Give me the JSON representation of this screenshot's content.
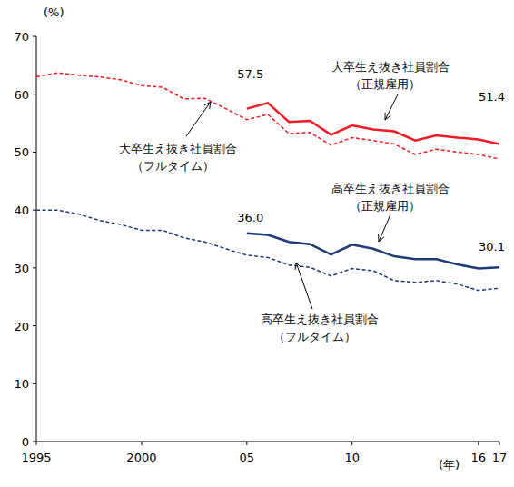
{
  "chart_data": {
    "type": "line",
    "x": [
      1995,
      1996,
      1997,
      1998,
      1999,
      2000,
      2001,
      2002,
      2003,
      2004,
      2005,
      2006,
      2007,
      2008,
      2009,
      2010,
      2011,
      2012,
      2013,
      2014,
      2015,
      2016,
      2017
    ],
    "xlim": [
      1995,
      2017
    ],
    "xticks": [
      1995,
      2000,
      {
        "value": 2005,
        "label": "05"
      },
      {
        "value": 2010,
        "label": "10"
      },
      {
        "value": 2016,
        "label": "16"
      },
      {
        "value": 2017,
        "label": "17"
      }
    ],
    "x_label": "(年)",
    "ylim": [
      0,
      70
    ],
    "yticks": [
      0,
      10,
      20,
      30,
      40,
      50,
      60,
      70
    ],
    "y_label": "(%)",
    "grid": false,
    "series": [
      {
        "name": "大卒生え抜き社員割合（正規雇用）",
        "color": "#ee1c25",
        "line_style": "solid",
        "values": [
          null,
          null,
          null,
          null,
          null,
          null,
          null,
          null,
          null,
          null,
          57.5,
          58.5,
          55.2,
          55.4,
          53.0,
          54.6,
          53.9,
          53.6,
          52.0,
          52.9,
          52.5,
          52.2,
          51.4
        ],
        "value_labels": [
          null,
          null,
          null,
          null,
          null,
          null,
          null,
          null,
          null,
          null,
          "57.5",
          null,
          null,
          null,
          null,
          null,
          null,
          null,
          null,
          null,
          null,
          null,
          "51.4"
        ]
      },
      {
        "name": "大卒生え抜き社員割合（フルタイム）",
        "color": "#ee1c25",
        "line_style": "dashed",
        "values": [
          63.0,
          63.7,
          63.3,
          63.0,
          62.5,
          61.5,
          61.2,
          59.2,
          59.3,
          57.5,
          55.6,
          56.5,
          53.2,
          53.4,
          51.2,
          52.5,
          52.0,
          51.4,
          49.6,
          50.5,
          50.0,
          49.6,
          48.8
        ]
      },
      {
        "name": "高卒生え抜き社員割合（正規雇用）",
        "color": "#1f3a78",
        "line_style": "solid",
        "values": [
          null,
          null,
          null,
          null,
          null,
          null,
          null,
          null,
          null,
          null,
          36.0,
          35.7,
          34.5,
          34.1,
          32.3,
          34.0,
          33.3,
          32.0,
          31.5,
          31.5,
          30.6,
          29.9,
          30.1
        ],
        "value_labels": [
          null,
          null,
          null,
          null,
          null,
          null,
          null,
          null,
          null,
          null,
          "36.0",
          null,
          null,
          null,
          null,
          null,
          null,
          null,
          null,
          null,
          null,
          null,
          "30.1"
        ]
      },
      {
        "name": "高卒生え抜き社員割合（フルタイム）",
        "color": "#1f3a78",
        "line_style": "dashed",
        "values": [
          40.0,
          40.0,
          39.3,
          38.2,
          37.5,
          36.5,
          36.5,
          35.2,
          34.5,
          33.3,
          32.2,
          31.8,
          30.5,
          30.1,
          28.6,
          29.9,
          29.5,
          27.8,
          27.5,
          27.8,
          27.2,
          26.1,
          26.5
        ]
      }
    ]
  }
}
